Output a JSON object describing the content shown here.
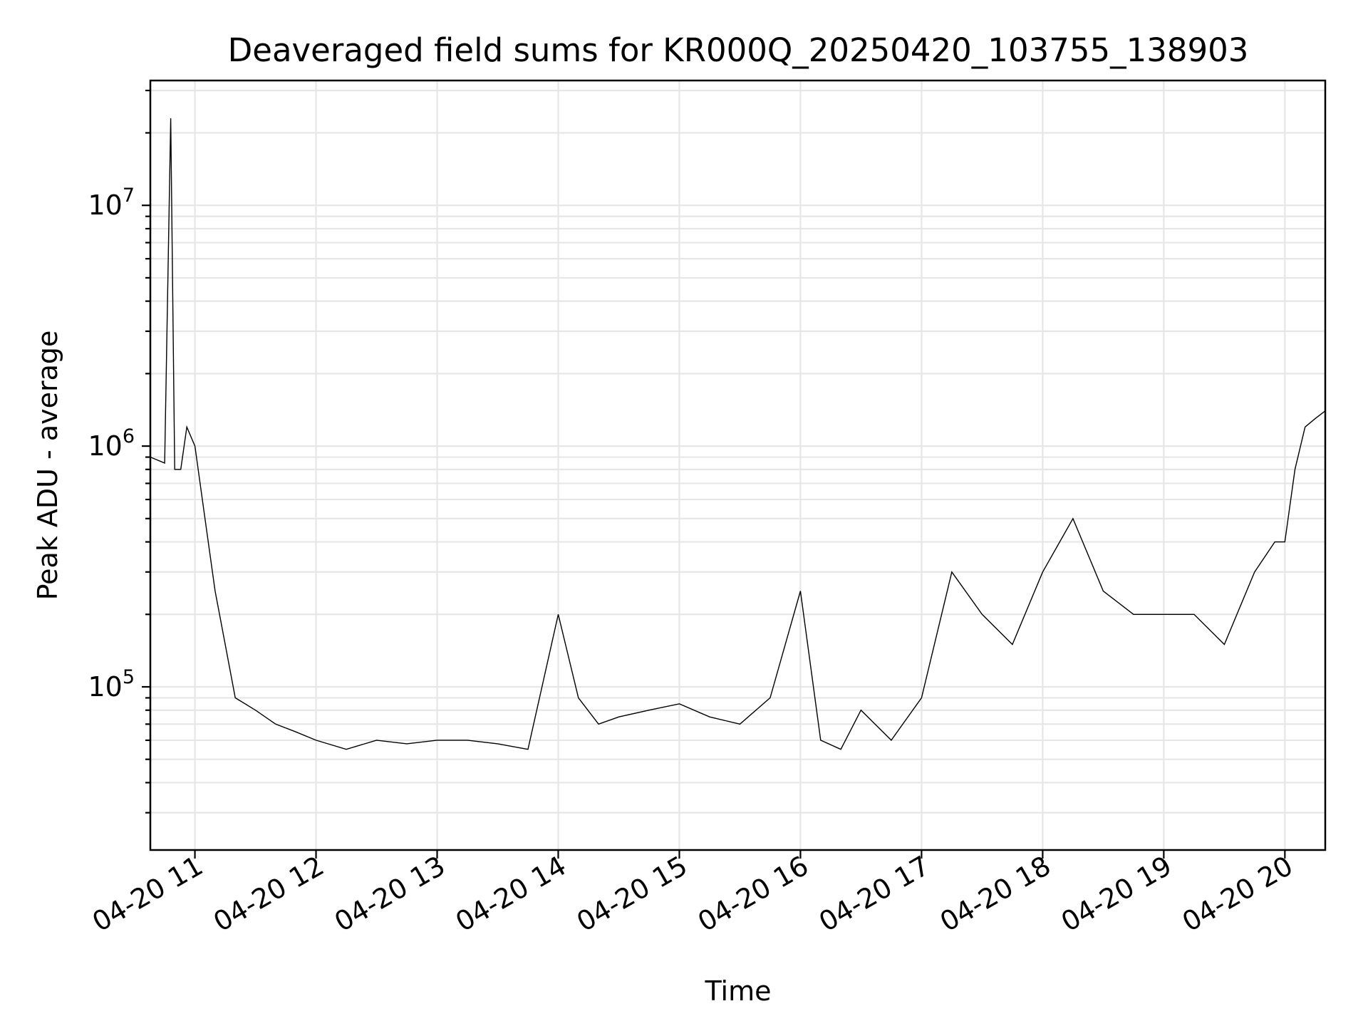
{
  "chart_data": {
    "type": "line",
    "title": "Deaveraged field sums for KR000Q_20250420_103755_138903",
    "xlabel": "Time",
    "ylabel": "Peak ADU - average",
    "yscale": "log",
    "grid": true,
    "line_color": "#000000",
    "grid_color": "#e6e6e6",
    "xlim": [
      "2025-04-20 10:37:55",
      "2025-04-20 20:20:00"
    ],
    "ylim": [
      21000,
      33000000
    ],
    "x_ticks": [
      {
        "value": "2025-04-20 11:00",
        "label": "04-20 11"
      },
      {
        "value": "2025-04-20 12:00",
        "label": "04-20 12"
      },
      {
        "value": "2025-04-20 13:00",
        "label": "04-20 13"
      },
      {
        "value": "2025-04-20 14:00",
        "label": "04-20 14"
      },
      {
        "value": "2025-04-20 15:00",
        "label": "04-20 15"
      },
      {
        "value": "2025-04-20 16:00",
        "label": "04-20 16"
      },
      {
        "value": "2025-04-20 17:00",
        "label": "04-20 17"
      },
      {
        "value": "2025-04-20 18:00",
        "label": "04-20 18"
      },
      {
        "value": "2025-04-20 19:00",
        "label": "04-20 19"
      },
      {
        "value": "2025-04-20 20:00",
        "label": "04-20 20"
      }
    ],
    "y_ticks": [
      {
        "value": 100000,
        "base": "10",
        "exp": "5"
      },
      {
        "value": 1000000,
        "base": "10",
        "exp": "6"
      },
      {
        "value": 10000000,
        "base": "10",
        "exp": "7"
      }
    ],
    "series": [
      {
        "x": [
          "2025-04-20 10:38",
          "2025-04-20 10:45",
          "2025-04-20 10:48",
          "2025-04-20 10:50",
          "2025-04-20 10:53",
          "2025-04-20 10:56",
          "2025-04-20 11:00",
          "2025-04-20 11:05",
          "2025-04-20 11:10",
          "2025-04-20 11:15",
          "2025-04-20 11:20",
          "2025-04-20 11:30",
          "2025-04-20 11:40",
          "2025-04-20 11:50",
          "2025-04-20 12:00",
          "2025-04-20 12:15",
          "2025-04-20 12:30",
          "2025-04-20 12:45",
          "2025-04-20 13:00",
          "2025-04-20 13:15",
          "2025-04-20 13:30",
          "2025-04-20 13:45",
          "2025-04-20 14:00",
          "2025-04-20 14:10",
          "2025-04-20 14:20",
          "2025-04-20 14:30",
          "2025-04-20 14:45",
          "2025-04-20 15:00",
          "2025-04-20 15:15",
          "2025-04-20 15:30",
          "2025-04-20 15:45",
          "2025-04-20 16:00",
          "2025-04-20 16:10",
          "2025-04-20 16:20",
          "2025-04-20 16:30",
          "2025-04-20 16:45",
          "2025-04-20 17:00",
          "2025-04-20 17:15",
          "2025-04-20 17:30",
          "2025-04-20 17:45",
          "2025-04-20 18:00",
          "2025-04-20 18:15",
          "2025-04-20 18:30",
          "2025-04-20 18:45",
          "2025-04-20 19:00",
          "2025-04-20 19:15",
          "2025-04-20 19:30",
          "2025-04-20 19:45",
          "2025-04-20 19:55",
          "2025-04-20 20:00",
          "2025-04-20 20:05",
          "2025-04-20 20:10",
          "2025-04-20 20:15",
          "2025-04-20 20:20"
        ],
        "y": [
          900000,
          850000,
          23000000,
          800000,
          800000,
          1200000,
          1000000,
          500000,
          250000,
          150000,
          90000,
          80000,
          70000,
          65000,
          60000,
          55000,
          60000,
          58000,
          60000,
          60000,
          58000,
          55000,
          200000,
          90000,
          70000,
          75000,
          80000,
          85000,
          75000,
          70000,
          90000,
          250000,
          60000,
          55000,
          80000,
          60000,
          90000,
          300000,
          200000,
          150000,
          300000,
          500000,
          250000,
          200000,
          200000,
          200000,
          150000,
          300000,
          400000,
          400000,
          800000,
          1200000,
          1300000,
          1400000
        ]
      }
    ]
  }
}
